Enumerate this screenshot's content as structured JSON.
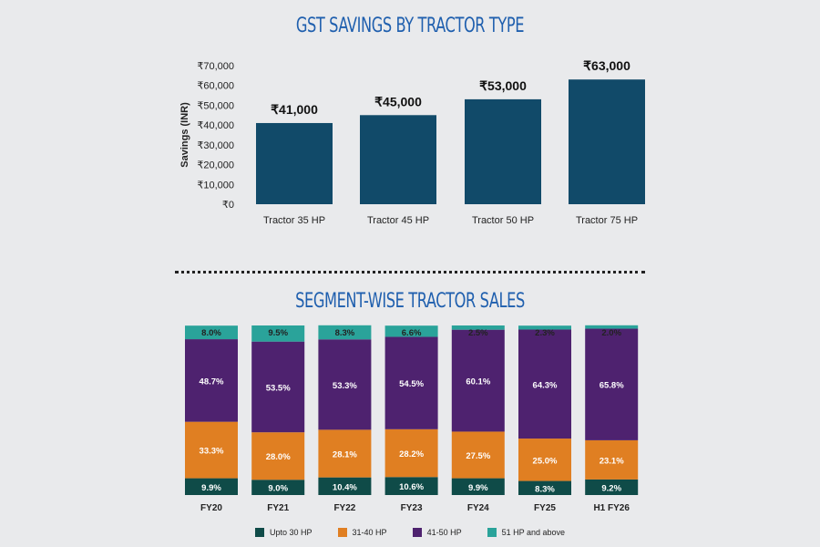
{
  "chart_data": [
    {
      "type": "bar",
      "title": "GST SAVINGS BY TRACTOR TYPE",
      "xlabel": "",
      "ylabel": "Savings (INR)",
      "ylim": [
        0,
        70000
      ],
      "yticks": [
        "₹0",
        "₹10,000",
        "₹20,000",
        "₹30,000",
        "₹40,000",
        "₹50,000",
        "₹60,000",
        "₹70,000"
      ],
      "categories": [
        "Tractor 35 HP",
        "Tractor 45 HP",
        "Tractor 50 HP",
        "Tractor 75 HP"
      ],
      "values": [
        41000,
        45000,
        53000,
        63000
      ],
      "data_labels": [
        "₹41,000",
        "₹45,000",
        "₹53,000",
        "₹63,000"
      ],
      "color": "#114a69"
    },
    {
      "type": "bar",
      "stacked": "percent",
      "title": "SEGMENT-WISE TRACTOR SALES",
      "categories": [
        "FY20",
        "FY21",
        "FY22",
        "FY23",
        "FY24",
        "FY25",
        "H1 FY26"
      ],
      "series": [
        {
          "name": "Upto 30 HP",
          "color": "#0f4b48",
          "values": [
            9.9,
            9.0,
            10.4,
            10.6,
            9.9,
            8.3,
            9.2
          ]
        },
        {
          "name": "31-40 HP",
          "color": "#e07f22",
          "values": [
            33.3,
            28.0,
            28.1,
            28.2,
            27.5,
            25.0,
            23.1
          ]
        },
        {
          "name": "41-50 HP",
          "color": "#4e226f",
          "values": [
            48.7,
            53.5,
            53.3,
            54.5,
            60.1,
            64.3,
            65.8
          ]
        },
        {
          "name": "51 HP and above",
          "color": "#2aa39a",
          "values": [
            8.0,
            9.5,
            8.3,
            6.6,
            2.5,
            2.3,
            2.0
          ]
        }
      ],
      "legend_position": "bottom"
    }
  ]
}
